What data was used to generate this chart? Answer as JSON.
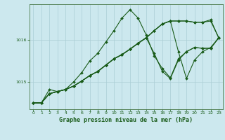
{
  "xlabel": "Graphe pression niveau de la mer (hPa)",
  "xlim": [
    -0.5,
    23.5
  ],
  "ylim": [
    1014.35,
    1016.85
  ],
  "yticks": [
    1015,
    1016
  ],
  "xticks": [
    0,
    1,
    2,
    3,
    4,
    5,
    6,
    7,
    8,
    9,
    10,
    11,
    12,
    13,
    14,
    15,
    16,
    17,
    18,
    19,
    20,
    21,
    22,
    23
  ],
  "bg_color": "#cce8ee",
  "grid_color": "#aacdd5",
  "line_color": "#1a5c1a",
  "y_main": [
    1014.5,
    1014.5,
    1014.82,
    1014.77,
    1014.82,
    1015.0,
    1015.22,
    1015.5,
    1015.68,
    1015.95,
    1016.22,
    1016.52,
    1016.72,
    1016.52,
    1016.12,
    1015.62,
    1015.32,
    1015.1,
    1015.55,
    1015.72,
    1015.82,
    1015.8,
    1015.8,
    1016.05
  ],
  "y_line2": [
    1014.5,
    1014.5,
    1014.72,
    1014.77,
    1014.82,
    1014.9,
    1015.02,
    1015.15,
    1015.25,
    1015.4,
    1015.55,
    1015.65,
    1015.78,
    1015.92,
    1016.05,
    1015.68,
    1015.25,
    1015.08,
    1015.52,
    1015.72,
    1015.82,
    1015.8,
    1015.8,
    1016.05
  ],
  "y_line3": [
    1014.5,
    1014.5,
    1014.72,
    1014.77,
    1014.82,
    1014.9,
    1015.02,
    1015.15,
    1015.25,
    1015.4,
    1015.55,
    1015.65,
    1015.78,
    1015.92,
    1016.05,
    1016.22,
    1016.38,
    1016.45,
    1015.72,
    1015.08,
    1015.52,
    1015.72,
    1015.82,
    1016.05
  ],
  "y_line4": [
    1014.5,
    1014.5,
    1014.72,
    1014.77,
    1014.82,
    1014.9,
    1015.02,
    1015.15,
    1015.25,
    1015.4,
    1015.55,
    1015.65,
    1015.78,
    1015.92,
    1016.05,
    1016.22,
    1016.38,
    1016.45,
    1016.45,
    1016.45,
    1016.42,
    1016.42,
    1016.45,
    1016.05
  ],
  "y_line5": [
    1014.5,
    1014.5,
    1014.72,
    1014.77,
    1014.82,
    1014.9,
    1015.02,
    1015.15,
    1015.25,
    1015.4,
    1015.55,
    1015.65,
    1015.78,
    1015.92,
    1016.05,
    1016.22,
    1016.38,
    1016.45,
    1016.45,
    1016.45,
    1016.42,
    1016.42,
    1016.48,
    1016.05
  ]
}
